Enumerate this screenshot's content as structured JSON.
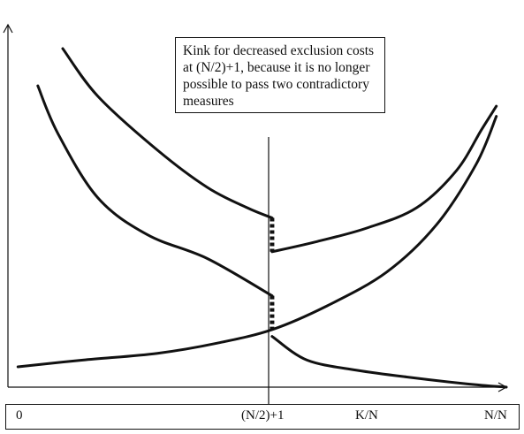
{
  "chart_data": {
    "type": "line",
    "title": "",
    "xlabel": "K/N",
    "ylabel": "",
    "x_tick_labels": [
      "0",
      "(N/2)+1",
      "N/N"
    ],
    "xlim": [
      0,
      1
    ],
    "ylim": [
      0,
      1
    ],
    "grid": false,
    "legend": "none",
    "annotation": "Kink for decreased exclusion costs at (N/2)+1, because it is no longer possible to pass two contradictory measures",
    "series": [
      {
        "x": [
          0.11,
          0.18,
          0.3,
          0.4,
          0.48,
          0.53
        ],
        "y": [
          1.0,
          0.86,
          0.7,
          0.59,
          0.53,
          0.5
        ]
      },
      {
        "x": [
          0.53,
          0.62,
          0.72,
          0.82,
          0.9,
          0.95,
          0.98
        ],
        "y": [
          0.4,
          0.43,
          0.47,
          0.53,
          0.64,
          0.76,
          0.83
        ]
      },
      {
        "x": [
          0.06,
          0.1,
          0.18,
          0.28,
          0.4,
          0.53
        ],
        "y": [
          0.89,
          0.75,
          0.56,
          0.45,
          0.38,
          0.27
        ]
      },
      {
        "x": [
          0.53,
          0.6,
          0.7,
          0.8,
          0.92,
          1.0
        ],
        "y": [
          0.15,
          0.08,
          0.05,
          0.03,
          0.01,
          0.0
        ]
      },
      {
        "x": [
          0.02,
          0.15,
          0.3,
          0.42,
          0.53,
          0.64,
          0.76,
          0.86,
          0.94,
          0.98
        ],
        "y": [
          0.06,
          0.08,
          0.1,
          0.13,
          0.17,
          0.24,
          0.34,
          0.48,
          0.66,
          0.8
        ]
      }
    ],
    "kinks": [
      {
        "x": 0.53,
        "y_top": 0.5,
        "y_bottom": 0.4
      },
      {
        "x": 0.53,
        "y_top": 0.27,
        "y_bottom": 0.17
      }
    ]
  }
}
